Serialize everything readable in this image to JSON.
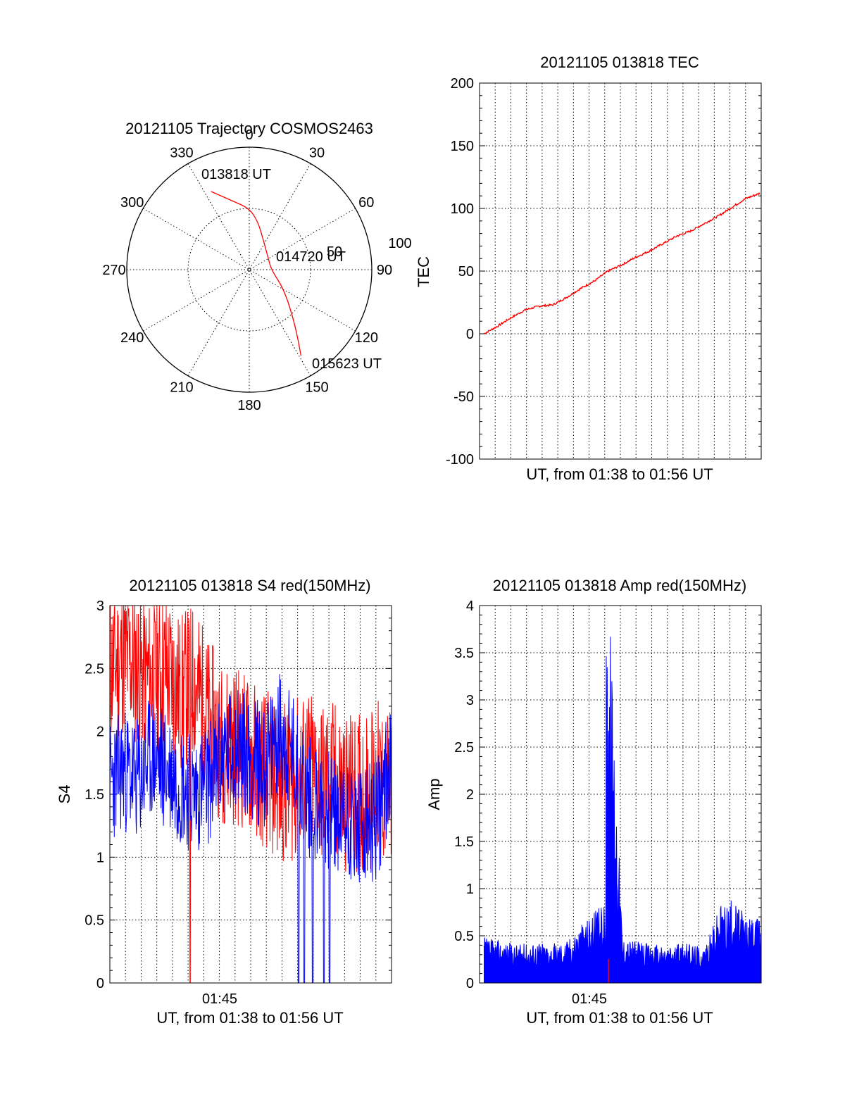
{
  "chart_data": [
    {
      "type": "polar",
      "title": "20121105 Trajectory COSMOS2463",
      "angle_labels": [
        "0",
        "30",
        "60",
        "90",
        "120",
        "150",
        "180",
        "210",
        "240",
        "270",
        "300",
        "330"
      ],
      "radius_labels": [
        "50",
        "100"
      ],
      "radius_max": 100,
      "trajectory": {
        "color": "#ff0000",
        "points": [
          {
            "az": 334,
            "r": 71
          },
          {
            "az": 346,
            "r": 58
          },
          {
            "az": 0,
            "r": 50
          },
          {
            "az": 10,
            "r": 40
          },
          {
            "az": 25,
            "r": 27
          },
          {
            "az": 60,
            "r": 18
          },
          {
            "az": 90,
            "r": 18
          },
          {
            "az": 120,
            "r": 33
          },
          {
            "az": 140,
            "r": 58
          },
          {
            "az": 149,
            "r": 82
          }
        ]
      },
      "annotations": [
        {
          "label": "013818 UT",
          "az": 334,
          "r": 71
        },
        {
          "label": "014720 UT",
          "az": 110,
          "r": 18
        },
        {
          "label": "015623 UT",
          "az": 149,
          "r": 82
        }
      ]
    },
    {
      "type": "line",
      "title": "20121105 013818 TEC",
      "xlabel": "UT, from 01:38 to 01:56 UT",
      "ylabel": "TEC",
      "ylim": [
        -100,
        200
      ],
      "yticks": [
        "-100",
        "-50",
        "0",
        "50",
        "100",
        "150",
        "200"
      ],
      "series": [
        {
          "color": "#ff0000",
          "x": [
            0,
            0.05,
            0.1,
            0.15,
            0.2,
            0.25,
            0.3,
            0.35,
            0.4,
            0.45,
            0.5,
            0.55,
            0.6,
            0.65,
            0.7,
            0.75,
            0.8,
            0.85,
            0.9,
            0.95,
            1
          ],
          "values": [
            0,
            6,
            13,
            19,
            22,
            23,
            29,
            36,
            42,
            50,
            55,
            61,
            66,
            72,
            78,
            82,
            88,
            94,
            101,
            108,
            112
          ]
        }
      ]
    },
    {
      "type": "line",
      "title": "20121105 013818 S4 red(150MHz)",
      "xlabel": "UT, from 01:38 to 01:56 UT",
      "ylabel": "S4",
      "ylim": [
        0,
        3
      ],
      "yticks": [
        "0",
        "0.5",
        "1",
        "1.5",
        "2",
        "2.5",
        "3"
      ],
      "xticks": [
        "01:45"
      ],
      "series": [
        {
          "color": "#ff0000",
          "x": [
            0,
            0.05,
            0.1,
            0.15,
            0.2,
            0.25,
            0.3,
            0.35,
            0.4,
            0.45,
            0.5,
            0.55,
            0.6,
            0.65,
            0.7,
            0.75,
            0.8,
            0.85,
            0.9,
            0.95,
            1
          ],
          "values": [
            2.5,
            2.6,
            2.5,
            2.4,
            2.5,
            2.3,
            2.4,
            2.1,
            1.9,
            1.9,
            1.8,
            1.7,
            1.6,
            1.6,
            1.7,
            1.6,
            1.6,
            1.5,
            1.5,
            1.6,
            1.5
          ]
        },
        {
          "color": "#0000ff",
          "x": [
            0,
            0.05,
            0.1,
            0.15,
            0.2,
            0.25,
            0.3,
            0.35,
            0.4,
            0.45,
            0.5,
            0.55,
            0.6,
            0.65,
            0.7,
            0.75,
            0.8,
            0.85,
            0.9,
            0.95,
            1
          ],
          "values": [
            1.6,
            1.7,
            1.6,
            1.8,
            1.7,
            1.6,
            1.5,
            1.6,
            1.8,
            1.9,
            1.8,
            1.7,
            2.0,
            1.8,
            1.5,
            1.4,
            1.3,
            1.3,
            1.2,
            1.3,
            1.8
          ]
        }
      ]
    },
    {
      "type": "line",
      "title": "20121105 013818 Amp red(150MHz)",
      "xlabel": "UT, from 01:38 to 01:56 UT",
      "ylabel": "Amp",
      "ylim": [
        0,
        4
      ],
      "yticks": [
        "0",
        "0.5",
        "1",
        "1.5",
        "2",
        "2.5",
        "3",
        "3.5",
        "4"
      ],
      "xticks": [
        "01:45"
      ],
      "series": [
        {
          "color": "#0000ff",
          "x": [
            0,
            0.05,
            0.1,
            0.15,
            0.2,
            0.25,
            0.3,
            0.35,
            0.4,
            0.44,
            0.45,
            0.5,
            0.55,
            0.6,
            0.65,
            0.7,
            0.75,
            0.8,
            0.85,
            0.9,
            0.95,
            1
          ],
          "values": [
            0.35,
            0.33,
            0.3,
            0.3,
            0.32,
            0.3,
            0.33,
            0.45,
            0.55,
            0.6,
            3.1,
            0.35,
            0.32,
            0.3,
            0.28,
            0.3,
            0.3,
            0.28,
            0.6,
            0.65,
            0.5,
            0.5
          ]
        }
      ]
    }
  ]
}
